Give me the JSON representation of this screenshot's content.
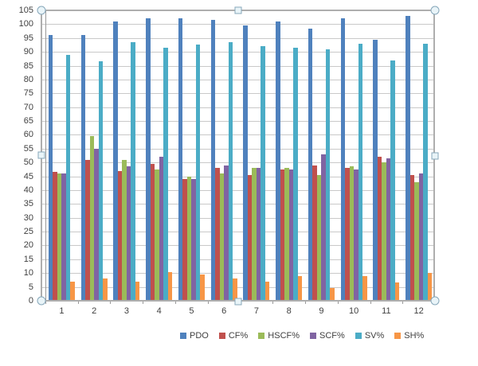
{
  "chart_data": {
    "type": "bar",
    "title": "",
    "xlabel": "",
    "ylabel": "",
    "categories": [
      "1",
      "2",
      "3",
      "4",
      "5",
      "6",
      "7",
      "8",
      "9",
      "10",
      "11",
      "12"
    ],
    "series": [
      {
        "name": "PDO",
        "color": "#4F81BD",
        "values": [
          96,
          96,
          101,
          102,
          102,
          101.5,
          99.5,
          101,
          98.5,
          102,
          94.5,
          103
        ]
      },
      {
        "name": "CF%",
        "color": "#C0504D",
        "values": [
          46.5,
          51,
          47,
          49.5,
          44,
          48,
          45.5,
          47.5,
          49,
          48,
          52,
          45.5
        ]
      },
      {
        "name": "HSCF%",
        "color": "#9BBB59",
        "values": [
          46,
          59.5,
          51,
          47.5,
          45,
          46,
          48,
          48,
          45.5,
          48.5,
          50,
          43
        ]
      },
      {
        "name": "SCF%",
        "color": "#8064A2",
        "values": [
          46,
          55,
          48.5,
          52,
          44,
          49,
          48,
          47.5,
          53,
          47.5,
          51.5,
          46
        ]
      },
      {
        "name": "SV%",
        "color": "#4BACC6",
        "values": [
          89,
          86.5,
          93.5,
          91.5,
          92.5,
          93.5,
          92,
          91.5,
          91,
          93,
          87,
          93
        ]
      },
      {
        "name": "SH%",
        "color": "#F79646",
        "values": [
          7,
          8,
          7,
          10.5,
          9.5,
          8,
          7,
          9,
          4.5,
          9,
          6.5,
          10
        ]
      }
    ],
    "ylim": [
      0,
      105
    ],
    "ytick_step": 5,
    "grid": true,
    "legend_position": "bottom"
  },
  "styles": {
    "gridline_color": "#C9C9C9",
    "axis_line_color": "#9A9A9A",
    "label_color": "#3F3F3F",
    "selection_border_color": "#AEAEAE",
    "handle_fill": "#E9F4F8",
    "handle_border": "#87A7BA",
    "background": "#FFFFFF"
  },
  "selection": {
    "selected": true,
    "handles": [
      "top-left",
      "top-middle",
      "top-right",
      "middle-left",
      "middle-right",
      "bottom-left",
      "bottom-middle",
      "bottom-right"
    ]
  }
}
